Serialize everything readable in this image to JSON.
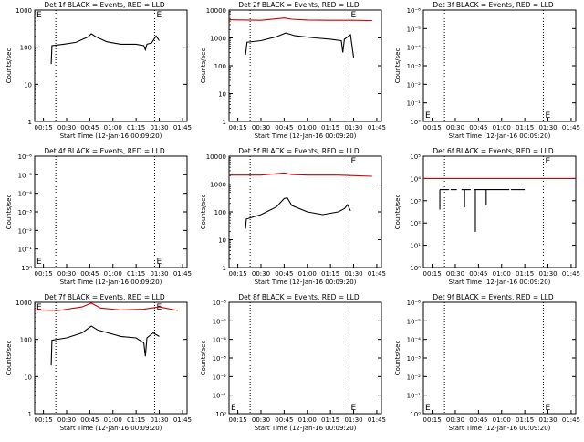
{
  "chart_data": [
    {
      "panel": "Det 1f",
      "type": "line",
      "title": "Det 1f BLACK = Events, RED = LLD",
      "ylabel": "Counts/sec",
      "xlabel": "Start Time (12-Jan-16 00:09:20)",
      "x_ticks": [
        "00:15",
        "00:30",
        "00:45",
        "01:00",
        "01:15",
        "01:30",
        "01:45"
      ],
      "y_scale": "log",
      "y_ticks": [
        "1",
        "10",
        "100",
        "1000"
      ],
      "ylim": [
        1,
        1200
      ],
      "xlim": [
        "00:09:20",
        "01:48:00"
      ],
      "dotted_lines_x": [
        "00:23:00",
        "01:27:00"
      ],
      "markers": [
        "E",
        "E"
      ],
      "series": [
        {
          "color": "#000000",
          "points": [
            [
              "00:20:00",
              35
            ],
            [
              "00:20:30",
              110
            ],
            [
              "00:28:00",
              120
            ],
            [
              "00:36:00",
              135
            ],
            [
              "00:44:00",
              190
            ],
            [
              "00:46:00",
              230
            ],
            [
              "00:49:00",
              190
            ],
            [
              "00:56:00",
              140
            ],
            [
              "01:05:00",
              120
            ],
            [
              "01:15:00",
              120
            ],
            [
              "01:20:00",
              110
            ],
            [
              "01:21:00",
              85
            ],
            [
              "01:22:00",
              120
            ],
            [
              "01:25:00",
              130
            ],
            [
              "01:28:00",
              200
            ],
            [
              "01:30:00",
              150
            ]
          ]
        }
      ]
    },
    {
      "panel": "Det 2f",
      "type": "line",
      "title": "Det 2f BLACK = Events, RED = LLD",
      "ylabel": "Counts/sec",
      "xlabel": "Start Time (12-Jan-16 00:09:20)",
      "x_ticks": [
        "00:15",
        "00:30",
        "00:45",
        "01:00",
        "01:15",
        "01:30",
        "01:45"
      ],
      "y_scale": "log",
      "y_ticks": [
        "1",
        "10",
        "100",
        "1000",
        "10000"
      ],
      "ylim": [
        1,
        12000
      ],
      "xlim": [
        "00:09:20",
        "01:48:00"
      ],
      "dotted_lines_x": [
        "00:23:00",
        "01:27:00"
      ],
      "markers": [
        "E"
      ],
      "series": [
        {
          "color": "#cc0000",
          "points": [
            [
              "00:09:20",
              4500
            ],
            [
              "00:30:00",
              4300
            ],
            [
              "00:45:00",
              5200
            ],
            [
              "00:50:00",
              4700
            ],
            [
              "01:00:00",
              4400
            ],
            [
              "01:15:00",
              4300
            ],
            [
              "01:30:00",
              4300
            ],
            [
              "01:42:00",
              4200
            ]
          ]
        },
        {
          "color": "#000000",
          "points": [
            [
              "00:20:00",
              250
            ],
            [
              "00:21:00",
              700
            ],
            [
              "00:30:00",
              800
            ],
            [
              "00:40:00",
              1100
            ],
            [
              "00:46:00",
              1500
            ],
            [
              "00:52:00",
              1200
            ],
            [
              "01:05:00",
              1000
            ],
            [
              "01:15:00",
              900
            ],
            [
              "01:22:00",
              800
            ],
            [
              "01:23:00",
              300
            ],
            [
              "01:24:00",
              900
            ],
            [
              "01:28:00",
              1300
            ],
            [
              "01:30:00",
              200
            ]
          ]
        }
      ]
    },
    {
      "panel": "Det 3f",
      "type": "line",
      "title": "Det 3f BLACK = Events, RED = LLD",
      "ylabel": "Counts/sec",
      "xlabel": "Start Time (12-Jan-16 00:09:20)",
      "x_ticks": [
        "00:15",
        "00:30",
        "00:45",
        "01:00",
        "01:15",
        "01:30",
        "01:45"
      ],
      "y_scale": "log",
      "y_ticks": [
        "10⁰",
        "10⁻¹",
        "10⁻²",
        "10⁻³",
        "10⁻⁴",
        "10⁻⁵",
        "10⁻⁶"
      ],
      "dotted_lines_x": [
        "00:23:00",
        "01:27:00"
      ],
      "markers": [
        "E",
        "E"
      ],
      "series": []
    },
    {
      "panel": "Det 4f",
      "type": "line",
      "title": "Det 4f BLACK = Events, RED = LLD",
      "ylabel": "Counts/sec",
      "xlabel": "Start Time (12-Jan-16 00:09:20)",
      "x_ticks": [
        "00:15",
        "00:30",
        "00:45",
        "01:00",
        "01:15",
        "01:30",
        "01:45"
      ],
      "y_scale": "log",
      "y_ticks": [
        "10⁰",
        "10⁻¹",
        "10⁻²",
        "10⁻³",
        "10⁻⁴",
        "10⁻⁵",
        "10⁻⁶"
      ],
      "dotted_lines_x": [
        "00:23:00",
        "01:27:00"
      ],
      "markers": [
        "E",
        "E"
      ],
      "series": []
    },
    {
      "panel": "Det 5f",
      "type": "line",
      "title": "Det 5f BLACK = Events, RED = LLD",
      "ylabel": "Counts/sec",
      "xlabel": "Start Time (12-Jan-16 00:09:20)",
      "x_ticks": [
        "00:15",
        "00:30",
        "00:45",
        "01:00",
        "01:15",
        "01:30",
        "01:45"
      ],
      "y_scale": "log",
      "y_ticks": [
        "1",
        "10",
        "100",
        "1000",
        "10000"
      ],
      "ylim": [
        1,
        12000
      ],
      "xlim": [
        "00:09:20",
        "01:48:00"
      ],
      "dotted_lines_x": [
        "00:23:00",
        "01:27:00"
      ],
      "markers": [
        "E"
      ],
      "series": [
        {
          "color": "#cc0000",
          "points": [
            [
              "00:09:20",
              2100
            ],
            [
              "00:30:00",
              2100
            ],
            [
              "00:45:00",
              2500
            ],
            [
              "00:50:00",
              2200
            ],
            [
              "01:00:00",
              2100
            ],
            [
              "01:20:00",
              2100
            ],
            [
              "01:42:00",
              1900
            ]
          ]
        },
        {
          "color": "#000000",
          "points": [
            [
              "00:20:00",
              25
            ],
            [
              "00:20:30",
              55
            ],
            [
              "00:30:00",
              80
            ],
            [
              "00:40:00",
              150
            ],
            [
              "00:45:00",
              300
            ],
            [
              "00:47:00",
              320
            ],
            [
              "00:50:00",
              170
            ],
            [
              "01:00:00",
              100
            ],
            [
              "01:10:00",
              80
            ],
            [
              "01:20:00",
              100
            ],
            [
              "01:24:00",
              130
            ],
            [
              "01:26:00",
              180
            ],
            [
              "01:28:00",
              110
            ]
          ]
        }
      ]
    },
    {
      "panel": "Det 6f",
      "type": "line",
      "title": "Det 6f BLACK = Events, RED = LLD",
      "ylabel": "Counts/sec",
      "xlabel": "Start Time (12-Jan-16 00:09:20)",
      "x_ticks": [
        "00:15",
        "00:30",
        "00:45",
        "01:00",
        "01:15",
        "01:30",
        "01:45"
      ],
      "y_scale": "log",
      "y_ticks": [
        "10⁰",
        "10¹",
        "10²",
        "10³",
        "10⁴",
        "10⁵"
      ],
      "dotted_lines_x": [
        "00:23:00",
        "01:27:00"
      ],
      "markers": [
        "E"
      ],
      "series": []
    },
    {
      "panel": "Det 7f",
      "type": "line",
      "title": "Det 7f BLACK = Events, RED = LLD",
      "ylabel": "Counts/sec",
      "xlabel": "Start Time (12-Jan-16 00:09:20)",
      "x_ticks": [
        "00:15",
        "00:30",
        "00:45",
        "01:00",
        "01:15",
        "01:30",
        "01:45"
      ],
      "y_scale": "log",
      "y_ticks": [
        "1",
        "10",
        "100",
        "1000"
      ],
      "ylim": [
        1,
        1200
      ],
      "xlim": [
        "00:09:20",
        "01:48:00"
      ],
      "dotted_lines_x": [
        "00:23:00",
        "01:27:00"
      ],
      "markers": [
        "E",
        "E"
      ],
      "series": [
        {
          "color": "#cc0000",
          "points": [
            [
              "00:09:20",
              620
            ],
            [
              "00:25:00",
              600
            ],
            [
              "00:40:00",
              750
            ],
            [
              "00:46:00",
              950
            ],
            [
              "00:52:00",
              700
            ],
            [
              "01:05:00",
              620
            ],
            [
              "01:20:00",
              650
            ],
            [
              "01:30:00",
              750
            ],
            [
              "01:42:00",
              600
            ]
          ]
        },
        {
          "color": "#000000",
          "points": [
            [
              "00:20:00",
              20
            ],
            [
              "00:20:30",
              95
            ],
            [
              "00:30:00",
              110
            ],
            [
              "00:40:00",
              150
            ],
            [
              "00:46:00",
              230
            ],
            [
              "00:50:00",
              180
            ],
            [
              "01:05:00",
              120
            ],
            [
              "01:15:00",
              110
            ],
            [
              "01:20:00",
              80
            ],
            [
              "01:21:00",
              35
            ],
            [
              "01:22:00",
              110
            ],
            [
              "01:26:00",
              150
            ],
            [
              "01:30:00",
              120
            ]
          ]
        }
      ]
    },
    {
      "panel": "Det 8f",
      "type": "line",
      "title": "Det 8f BLACK = Events, RED = LLD",
      "ylabel": "Counts/sec",
      "xlabel": "Start Time (12-Jan-16 00:09:20)",
      "x_ticks": [
        "00:15",
        "00:30",
        "00:45",
        "01:00",
        "01:15",
        "01:30",
        "01:45"
      ],
      "y_scale": "log",
      "y_ticks": [
        "10⁰",
        "10⁻¹",
        "10⁻²",
        "10⁻³",
        "10⁻⁴",
        "10⁻⁵",
        "10⁻⁶"
      ],
      "dotted_lines_x": [
        "00:23:00",
        "01:27:00"
      ],
      "markers": [
        "E",
        "E"
      ],
      "series": []
    },
    {
      "panel": "Det 9f",
      "type": "line",
      "title": "Det 9f BLACK = Events, RED = LLD",
      "ylabel": "Counts/sec",
      "xlabel": "Start Time (12-Jan-16 00:09:20)",
      "x_ticks": [
        "00:15",
        "00:30",
        "00:45",
        "01:00",
        "01:15",
        "01:30",
        "01:45"
      ],
      "y_scale": "log",
      "y_ticks": [
        "10⁰",
        "10⁻¹",
        "10⁻²",
        "10⁻³",
        "10⁻⁴",
        "10⁻⁵",
        "10⁻⁶"
      ],
      "dotted_lines_x": [
        "00:23:00",
        "01:27:00"
      ],
      "markers": [
        "E",
        "E"
      ],
      "series": []
    }
  ]
}
